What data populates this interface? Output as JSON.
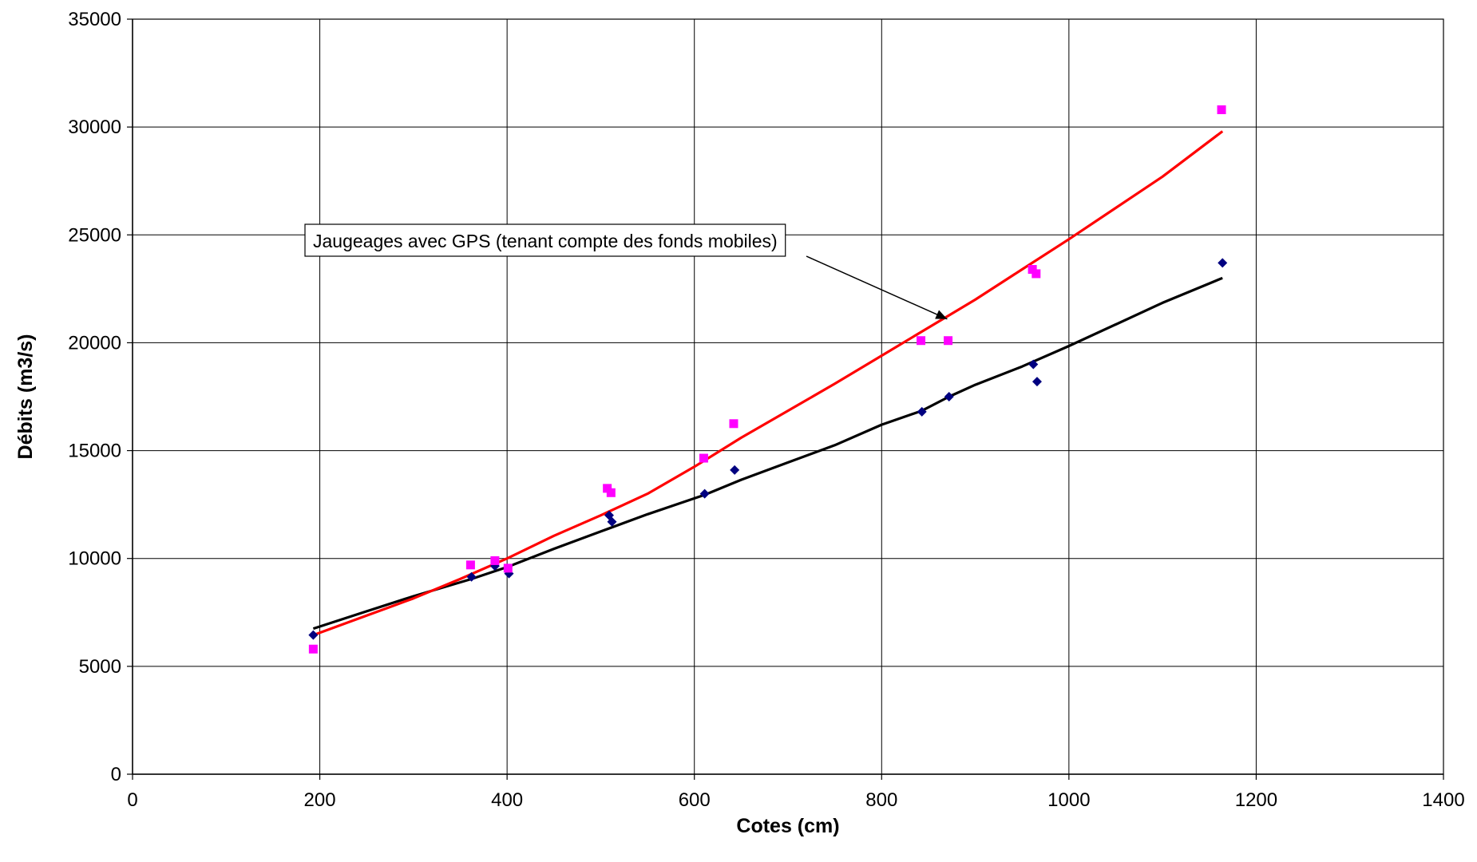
{
  "chart_data": {
    "type": "scatter",
    "xlabel": "Cotes (cm)",
    "ylabel": "Débits (m3/s)",
    "xlim": [
      0,
      1400
    ],
    "ylim": [
      0,
      35000
    ],
    "x_ticks": [
      0,
      200,
      400,
      600,
      800,
      1000,
      1200,
      1400
    ],
    "y_ticks": [
      0,
      5000,
      10000,
      15000,
      20000,
      25000,
      30000,
      35000
    ],
    "grid": true,
    "series": [
      {
        "marker": "diamond",
        "color": "#000080",
        "points": [
          [
            193,
            6450
          ],
          [
            362,
            9150
          ],
          [
            387,
            9650
          ],
          [
            402,
            9300
          ],
          [
            509,
            12000
          ],
          [
            512,
            11700
          ],
          [
            611,
            13000
          ],
          [
            643,
            14100
          ],
          [
            843,
            16800
          ],
          [
            872,
            17500
          ],
          [
            962,
            19000
          ],
          [
            966,
            18200
          ],
          [
            1164,
            23700
          ]
        ]
      },
      {
        "marker": "square",
        "color": "#ff00ff",
        "points": [
          [
            193,
            5800
          ],
          [
            361,
            9700
          ],
          [
            387,
            9900
          ],
          [
            401,
            9550
          ],
          [
            507,
            13250
          ],
          [
            511,
            13050
          ],
          [
            610,
            14650
          ],
          [
            642,
            16250
          ],
          [
            842,
            20100
          ],
          [
            871,
            20100
          ],
          [
            961,
            23400
          ],
          [
            965,
            23200
          ],
          [
            1163,
            30800
          ]
        ]
      },
      {
        "type": "line",
        "color": "#000000",
        "points": [
          [
            193,
            6750
          ],
          [
            250,
            7550
          ],
          [
            300,
            8250
          ],
          [
            362,
            9050
          ],
          [
            400,
            9600
          ],
          [
            450,
            10450
          ],
          [
            500,
            11250
          ],
          [
            550,
            12050
          ],
          [
            611,
            12950
          ],
          [
            650,
            13650
          ],
          [
            700,
            14450
          ],
          [
            750,
            15250
          ],
          [
            800,
            16200
          ],
          [
            843,
            16850
          ],
          [
            872,
            17500
          ],
          [
            900,
            18050
          ],
          [
            950,
            18900
          ],
          [
            1000,
            19850
          ],
          [
            1050,
            20850
          ],
          [
            1100,
            21850
          ],
          [
            1150,
            22750
          ],
          [
            1164,
            23000
          ]
        ]
      },
      {
        "type": "line",
        "color": "#ff0000",
        "points": [
          [
            193,
            6450
          ],
          [
            250,
            7350
          ],
          [
            300,
            8150
          ],
          [
            350,
            9050
          ],
          [
            400,
            10000
          ],
          [
            450,
            11050
          ],
          [
            500,
            12000
          ],
          [
            550,
            13000
          ],
          [
            600,
            14250
          ],
          [
            650,
            15600
          ],
          [
            700,
            16850
          ],
          [
            750,
            18100
          ],
          [
            800,
            19400
          ],
          [
            850,
            20700
          ],
          [
            900,
            22000
          ],
          [
            950,
            23400
          ],
          [
            1000,
            24800
          ],
          [
            1050,
            26250
          ],
          [
            1100,
            27700
          ],
          [
            1164,
            29800
          ]
        ]
      }
    ],
    "annotation": {
      "text": "Jaugeages avec GPS (tenant compte des fonds mobiles)",
      "arrow_to": [
        870,
        21100
      ]
    }
  }
}
